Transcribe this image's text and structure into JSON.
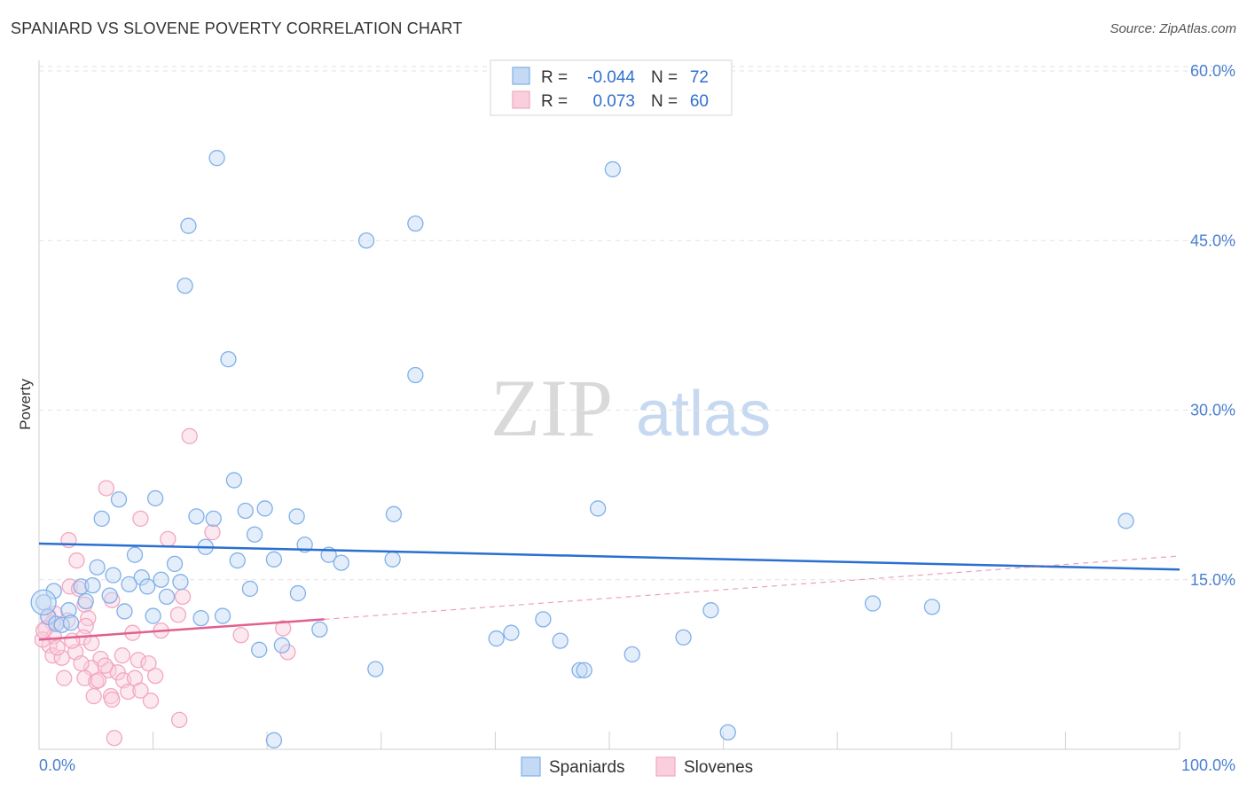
{
  "title": "SPANIARD VS SLOVENE POVERTY CORRELATION CHART",
  "source": "Source: ZipAtlas.com",
  "watermark": {
    "zip": "ZIP",
    "atlas": "atlas"
  },
  "chart_data": {
    "type": "scatter",
    "ylabel": "Poverty",
    "xlim": [
      0,
      100
    ],
    "ylim": [
      0,
      62
    ],
    "x_tick_labels": [
      "0.0%",
      "100.0%"
    ],
    "y_ticks": [
      15,
      30,
      45,
      60
    ],
    "y_tick_labels": [
      "15.0%",
      "30.0%",
      "45.0%",
      "60.0%"
    ],
    "legend": [
      {
        "r_label": "R =",
        "r_value": "-0.044",
        "n_label": "N =",
        "n_value": "72"
      },
      {
        "r_label": "R =",
        "r_value": "0.073",
        "n_label": "N =",
        "n_value": "60"
      }
    ],
    "series": [
      {
        "name": "Spaniards",
        "color": "#7fb0ea",
        "line_color": "#2a6fd0",
        "trend": {
          "x0": 0,
          "y0": 18.2,
          "x1": 100,
          "y1": 15.9
        },
        "points": [
          [
            15.6,
            52.3
          ],
          [
            13.1,
            46.3
          ],
          [
            33.0,
            46.5
          ],
          [
            28.7,
            45.0
          ],
          [
            50.3,
            51.3
          ],
          [
            12.8,
            41.0
          ],
          [
            16.6,
            34.5
          ],
          [
            33.0,
            33.1
          ],
          [
            17.1,
            23.8
          ],
          [
            10.2,
            22.2
          ],
          [
            7.0,
            22.1
          ],
          [
            5.5,
            20.4
          ],
          [
            13.8,
            20.6
          ],
          [
            15.3,
            20.4
          ],
          [
            18.1,
            21.1
          ],
          [
            19.8,
            21.3
          ],
          [
            22.6,
            20.6
          ],
          [
            31.1,
            20.8
          ],
          [
            49.0,
            21.3
          ],
          [
            95.3,
            20.2
          ],
          [
            18.9,
            19.0
          ],
          [
            14.6,
            17.9
          ],
          [
            23.3,
            18.1
          ],
          [
            25.4,
            17.2
          ],
          [
            8.4,
            17.2
          ],
          [
            11.9,
            16.4
          ],
          [
            17.4,
            16.7
          ],
          [
            20.6,
            16.8
          ],
          [
            26.5,
            16.5
          ],
          [
            31.0,
            16.8
          ],
          [
            5.1,
            16.1
          ],
          [
            6.5,
            15.4
          ],
          [
            9.0,
            15.2
          ],
          [
            10.7,
            15.0
          ],
          [
            12.4,
            14.8
          ],
          [
            9.5,
            14.4
          ],
          [
            7.9,
            14.6
          ],
          [
            3.7,
            14.4
          ],
          [
            4.7,
            14.5
          ],
          [
            1.3,
            14.0
          ],
          [
            6.2,
            13.6
          ],
          [
            11.2,
            13.5
          ],
          [
            18.5,
            14.2
          ],
          [
            22.7,
            13.8
          ],
          [
            4.1,
            13.1
          ],
          [
            0.4,
            13.0
          ],
          [
            2.6,
            12.3
          ],
          [
            7.5,
            12.2
          ],
          [
            10.0,
            11.8
          ],
          [
            14.2,
            11.6
          ],
          [
            16.1,
            11.8
          ],
          [
            44.2,
            11.5
          ],
          [
            73.1,
            12.9
          ],
          [
            78.3,
            12.6
          ],
          [
            58.9,
            12.3
          ],
          [
            0.8,
            11.7
          ],
          [
            1.5,
            11.1
          ],
          [
            2.0,
            11.0
          ],
          [
            2.8,
            11.2
          ],
          [
            24.6,
            10.6
          ],
          [
            41.4,
            10.3
          ],
          [
            40.1,
            9.8
          ],
          [
            45.7,
            9.6
          ],
          [
            56.5,
            9.9
          ],
          [
            21.3,
            9.2
          ],
          [
            19.3,
            8.8
          ],
          [
            52.0,
            8.4
          ],
          [
            29.5,
            7.1
          ],
          [
            47.4,
            7.0
          ],
          [
            47.8,
            7.0
          ],
          [
            20.6,
            0.8
          ],
          [
            60.4,
            1.5
          ]
        ]
      },
      {
        "name": "Slovenes",
        "color": "#f3a6c0",
        "line_color": "#e06090",
        "trend": {
          "x0": 0,
          "y0": 9.7,
          "x1": 25,
          "y1": 11.5
        },
        "trend_ext": {
          "x0": 25,
          "y0": 11.5,
          "x1": 100,
          "y1": 17.1
        },
        "points": [
          [
            13.2,
            27.7
          ],
          [
            5.9,
            23.1
          ],
          [
            8.9,
            20.4
          ],
          [
            15.2,
            19.2
          ],
          [
            2.6,
            18.5
          ],
          [
            11.3,
            18.6
          ],
          [
            3.3,
            16.7
          ],
          [
            2.7,
            14.4
          ],
          [
            3.5,
            14.2
          ],
          [
            12.6,
            13.5
          ],
          [
            6.4,
            13.2
          ],
          [
            4.0,
            12.8
          ],
          [
            1.4,
            12.0
          ],
          [
            0.8,
            11.8
          ],
          [
            4.3,
            11.6
          ],
          [
            2.5,
            11.4
          ],
          [
            1.2,
            11.2
          ],
          [
            12.2,
            11.9
          ],
          [
            4.1,
            10.9
          ],
          [
            8.2,
            10.3
          ],
          [
            10.7,
            10.5
          ],
          [
            0.6,
            10.7
          ],
          [
            1.3,
            10.0
          ],
          [
            3.9,
            9.9
          ],
          [
            17.7,
            10.1
          ],
          [
            21.4,
            10.7
          ],
          [
            4.6,
            9.4
          ],
          [
            0.9,
            9.2
          ],
          [
            3.2,
            8.6
          ],
          [
            1.2,
            8.3
          ],
          [
            2.0,
            8.1
          ],
          [
            5.4,
            8.0
          ],
          [
            7.3,
            8.3
          ],
          [
            8.7,
            7.9
          ],
          [
            9.6,
            7.6
          ],
          [
            21.8,
            8.6
          ],
          [
            4.6,
            7.2
          ],
          [
            6.1,
            7.0
          ],
          [
            6.9,
            6.8
          ],
          [
            10.2,
            6.5
          ],
          [
            2.2,
            6.3
          ],
          [
            4.0,
            6.3
          ],
          [
            5.0,
            6.0
          ],
          [
            5.2,
            6.1
          ],
          [
            7.4,
            6.1
          ],
          [
            8.4,
            6.3
          ],
          [
            7.8,
            5.1
          ],
          [
            8.9,
            5.2
          ],
          [
            4.8,
            4.7
          ],
          [
            6.3,
            4.7
          ],
          [
            6.4,
            4.4
          ],
          [
            9.8,
            4.3
          ],
          [
            12.3,
            2.6
          ],
          [
            6.6,
            1.0
          ],
          [
            0.3,
            9.7
          ],
          [
            1.6,
            9.0
          ],
          [
            2.9,
            9.6
          ],
          [
            3.7,
            7.6
          ],
          [
            5.8,
            7.4
          ],
          [
            0.4,
            10.5
          ]
        ]
      }
    ]
  }
}
